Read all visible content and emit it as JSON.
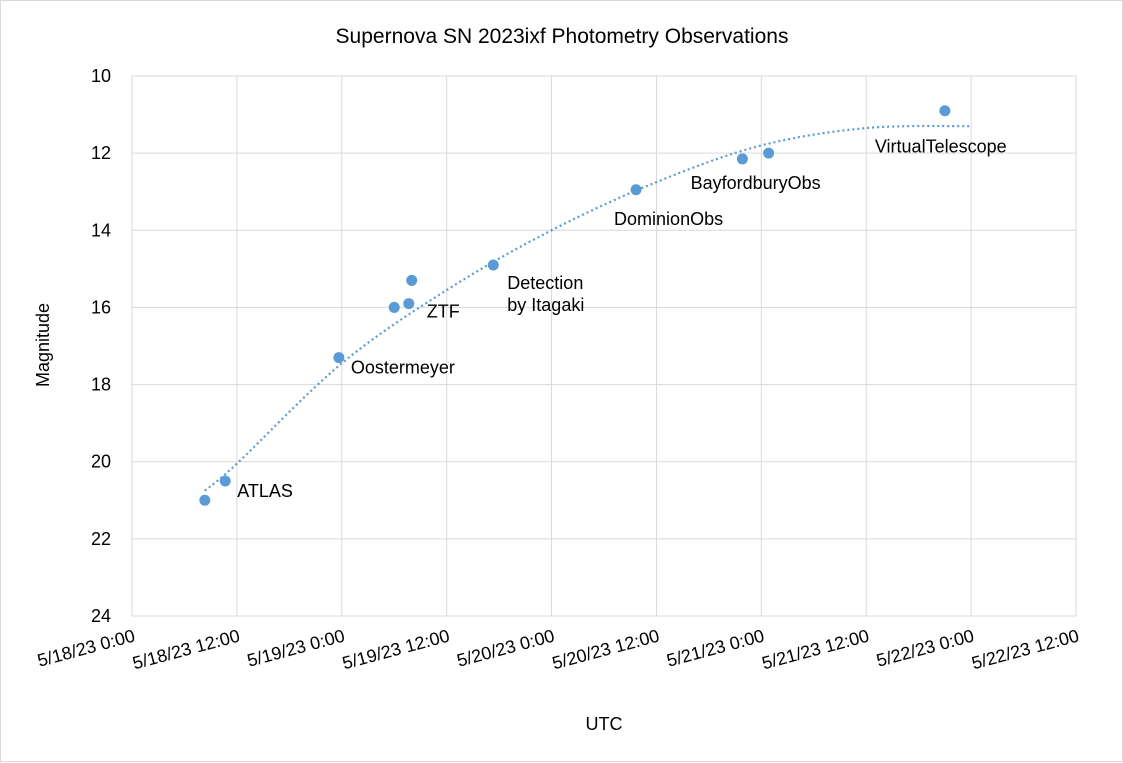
{
  "chart_data": {
    "type": "scatter",
    "title": "Supernova SN 2023ixf Photometry Observations",
    "xlabel": "UTC",
    "ylabel": "Magnitude",
    "x_axis": {
      "type": "date",
      "min": "2023-05-18T00:00",
      "max": "2023-05-22T12:00",
      "step_hours": 12,
      "tick_labels": [
        "5/18/23 0:00",
        "5/18/23 12:00",
        "5/19/23 0:00",
        "5/19/23 12:00",
        "5/20/23 0:00",
        "5/20/23 12:00",
        "5/21/23 0:00",
        "5/21/23 12:00",
        "5/22/23 0:00",
        "5/22/23 12:00"
      ]
    },
    "y_axis": {
      "reversed": true,
      "min": 10,
      "max": 24,
      "step": 2,
      "tick_labels": [
        "10",
        "12",
        "14",
        "16",
        "18",
        "20",
        "22",
        "24"
      ]
    },
    "grid": true,
    "legend": "none",
    "marker_color": "#5b9bd5",
    "trendline": {
      "style": "dotted",
      "color": "#5b9bd5",
      "kind": "polynomial"
    },
    "points": [
      {
        "x": "2023-05-18T08:20",
        "y": 21.0
      },
      {
        "x": "2023-05-18T10:40",
        "y": 20.5
      },
      {
        "x": "2023-05-18T23:40",
        "y": 17.3
      },
      {
        "x": "2023-05-19T06:00",
        "y": 16.0
      },
      {
        "x": "2023-05-19T07:40",
        "y": 15.9
      },
      {
        "x": "2023-05-19T08:00",
        "y": 15.3
      },
      {
        "x": "2023-05-19T17:20",
        "y": 14.9
      },
      {
        "x": "2023-05-20T09:40",
        "y": 12.95
      },
      {
        "x": "2023-05-20T21:50",
        "y": 12.15
      },
      {
        "x": "2023-05-21T00:50",
        "y": 12.0
      },
      {
        "x": "2023-05-21T21:00",
        "y": 10.9
      }
    ],
    "trend_points": [
      {
        "x": "2023-05-18T08:20",
        "y": 20.75
      },
      {
        "x": "2023-05-18T12:00",
        "y": 20.05
      },
      {
        "x": "2023-05-19T00:00",
        "y": 17.45
      },
      {
        "x": "2023-05-19T12:00",
        "y": 15.55
      },
      {
        "x": "2023-05-20T00:00",
        "y": 14.0
      },
      {
        "x": "2023-05-20T12:00",
        "y": 12.75
      },
      {
        "x": "2023-05-21T00:00",
        "y": 11.8
      },
      {
        "x": "2023-05-21T12:00",
        "y": 11.35
      },
      {
        "x": "2023-05-22T00:00",
        "y": 11.3
      }
    ],
    "annotations": [
      {
        "text": "ATLAS",
        "x": "2023-05-18T10:40",
        "y": 20.5
      },
      {
        "text": "Oostermeyer",
        "x": "2023-05-18T23:40",
        "y": 17.3
      },
      {
        "text": "ZTF",
        "x": "2023-05-19T07:40",
        "y": 15.9
      },
      {
        "text": "Detection by Itagaki",
        "x": "2023-05-19T17:20",
        "y": 14.9
      },
      {
        "text": "DominionObs",
        "x": "2023-05-20T09:40",
        "y": 12.95
      },
      {
        "text": "BayfordburyObs",
        "x": "2023-05-21T00:50",
        "y": 12.0
      },
      {
        "text": "VirtualTelescope",
        "x": "2023-05-21T21:00",
        "y": 10.9
      }
    ]
  }
}
